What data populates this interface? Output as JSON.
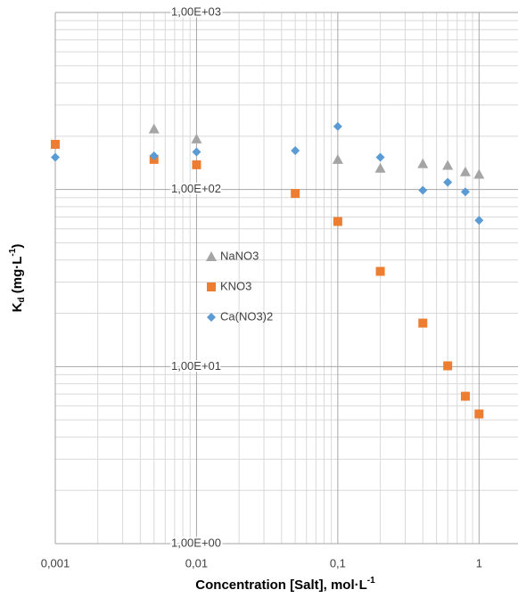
{
  "chart_data": {
    "type": "scatter",
    "x_label": {
      "text": "Concentration [Salt], mol·L",
      "sup": "-1"
    },
    "y_label": {
      "text": "K",
      "sub": "d",
      "rest": " (mg·L",
      "sup": "-1",
      "end": ")"
    },
    "xlog": true,
    "ylog": true,
    "grid": true,
    "minor_grid": true,
    "legend": "center-left",
    "xlim": [
      0.001,
      2
    ],
    "ylim": [
      1,
      1000
    ],
    "xticks": [
      {
        "value": 0.001,
        "label": "0,001"
      },
      {
        "value": 0.01,
        "label": "0,01"
      },
      {
        "value": 0.1,
        "label": "0,1"
      },
      1
    ],
    "yticks": [
      {
        "value": 1,
        "label": "1,00E+00"
      },
      {
        "value": 10,
        "label": "1,00E+01"
      },
      {
        "value": 100,
        "label": "1,00E+02"
      },
      {
        "value": 1000,
        "label": "1,00E+03"
      }
    ],
    "series": [
      {
        "name": "NaNO3",
        "color": "#a5a5a5",
        "marker": "triangle",
        "x": [
          0.005,
          0.01,
          0.1,
          0.2,
          0.4,
          0.6,
          0.8,
          1
        ],
        "values": [
          220,
          193,
          148,
          132,
          140,
          137,
          126,
          122
        ]
      },
      {
        "name": "KNO3",
        "color": "#ed7d31",
        "marker": "square",
        "x": [
          0.001,
          0.005,
          0.01,
          0.05,
          0.1,
          0.2,
          0.4,
          0.6,
          0.8,
          1
        ],
        "values": [
          180,
          148,
          138,
          95,
          66,
          34.5,
          17.6,
          10.1,
          6.8,
          5.4
        ]
      },
      {
        "name": "Ca(NO3)2",
        "color": "#5b9bd5",
        "marker": "diamond",
        "x": [
          0.001,
          0.005,
          0.01,
          0.05,
          0.1,
          0.2,
          0.4,
          0.6,
          0.8,
          1
        ],
        "values": [
          152,
          155,
          163,
          166,
          227,
          152,
          99,
          110,
          97,
          67
        ]
      }
    ]
  }
}
